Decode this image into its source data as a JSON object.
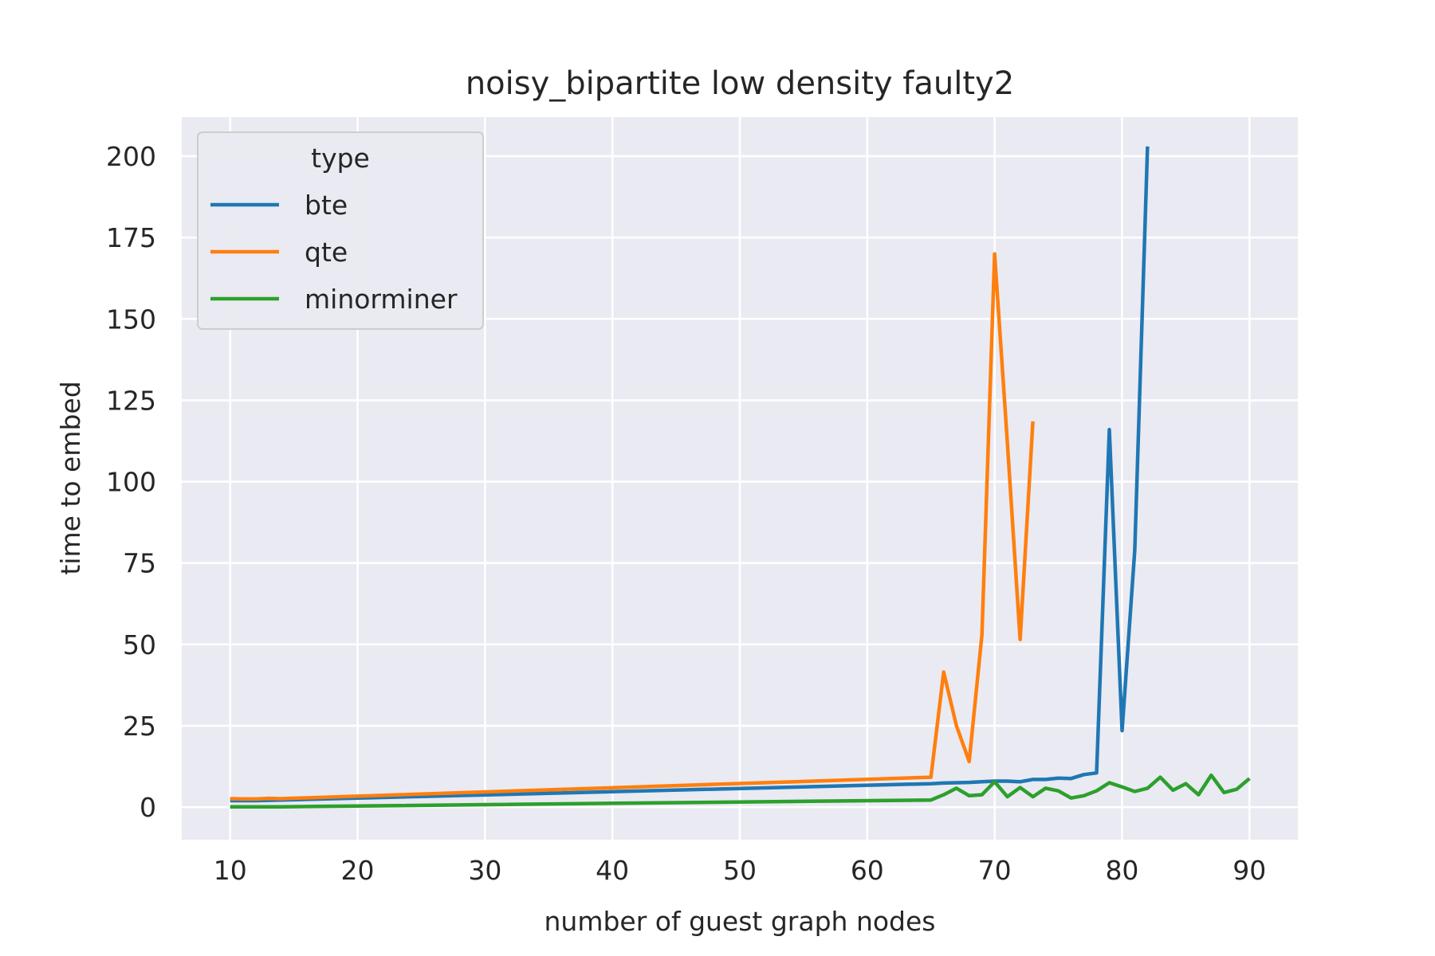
{
  "chart_data": {
    "type": "line",
    "title": "noisy_bipartite low density faulty2",
    "xlabel": "number of guest graph nodes",
    "ylabel": "time to embed",
    "xlim": [
      6.2,
      93.8
    ],
    "ylim": [
      -10,
      212
    ],
    "xticks": [
      10,
      20,
      30,
      40,
      50,
      60,
      70,
      80,
      90
    ],
    "yticks": [
      0,
      25,
      50,
      75,
      100,
      125,
      150,
      175,
      200
    ],
    "grid": true,
    "background": "#eaeaf2",
    "legend": {
      "title": "type",
      "placement": "top-left"
    },
    "series": [
      {
        "name": "bte",
        "color": "#1f77b4",
        "points": [
          [
            10,
            2.0
          ],
          [
            11,
            2.0
          ],
          [
            12,
            2.0
          ],
          [
            13,
            2.1
          ],
          [
            14,
            2.2
          ],
          [
            65,
            7.2
          ],
          [
            66,
            7.4
          ],
          [
            67,
            7.5
          ],
          [
            68,
            7.6
          ],
          [
            69,
            7.8
          ],
          [
            70,
            8.0
          ],
          [
            71,
            8.0
          ],
          [
            72,
            7.8
          ],
          [
            73,
            8.5
          ],
          [
            74,
            8.5
          ],
          [
            75,
            8.9
          ],
          [
            76,
            8.8
          ],
          [
            77,
            10.0
          ],
          [
            78,
            10.5
          ],
          [
            79,
            116.0
          ],
          [
            80,
            23.5
          ],
          [
            81,
            79.0
          ],
          [
            82,
            203.0
          ]
        ]
      },
      {
        "name": "qte",
        "color": "#ff7f0e",
        "points": [
          [
            10,
            2.6
          ],
          [
            11,
            2.5
          ],
          [
            12,
            2.5
          ],
          [
            13,
            2.7
          ],
          [
            14,
            2.6
          ],
          [
            65,
            9.2
          ],
          [
            66,
            41.5
          ],
          [
            67,
            25.0
          ],
          [
            68,
            14.0
          ],
          [
            69,
            53.0
          ],
          [
            70,
            170.0
          ],
          [
            71,
            112.0
          ],
          [
            72,
            51.5
          ],
          [
            73,
            118.5
          ]
        ]
      },
      {
        "name": "minorminer",
        "color": "#2ca02c",
        "points": [
          [
            10,
            0.1
          ],
          [
            11,
            0.1
          ],
          [
            12,
            0.1
          ],
          [
            13,
            0.1
          ],
          [
            14,
            0.1
          ],
          [
            65,
            2.2
          ],
          [
            66,
            3.8
          ],
          [
            67,
            5.8
          ],
          [
            68,
            3.5
          ],
          [
            69,
            3.8
          ],
          [
            70,
            7.8
          ],
          [
            71,
            3.2
          ],
          [
            72,
            6.0
          ],
          [
            73,
            3.2
          ],
          [
            74,
            5.8
          ],
          [
            75,
            5.0
          ],
          [
            76,
            2.8
          ],
          [
            77,
            3.5
          ],
          [
            78,
            5.0
          ],
          [
            79,
            7.5
          ],
          [
            80,
            6.2
          ],
          [
            81,
            4.8
          ],
          [
            82,
            5.8
          ],
          [
            83,
            9.2
          ],
          [
            84,
            5.2
          ],
          [
            85,
            7.2
          ],
          [
            86,
            3.8
          ],
          [
            87,
            9.8
          ],
          [
            88,
            4.5
          ],
          [
            89,
            5.5
          ],
          [
            90,
            8.8
          ]
        ]
      }
    ]
  }
}
